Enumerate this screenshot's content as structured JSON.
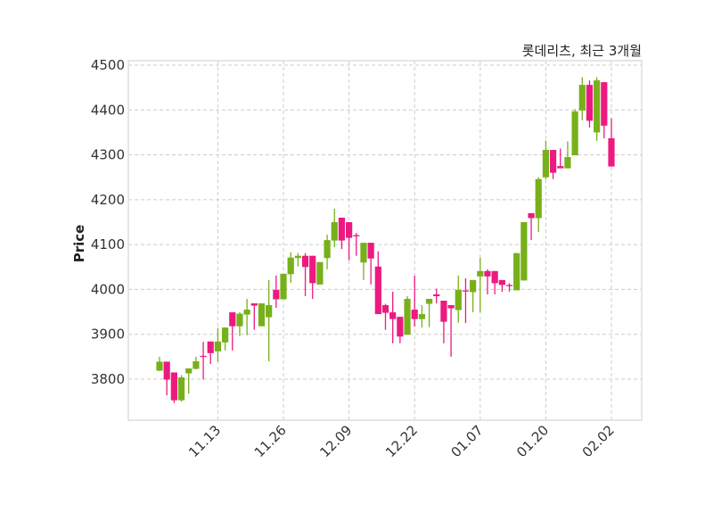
{
  "chart_data": {
    "type": "candlestick",
    "title": "롯데리츠, 최근 3개월",
    "xlabel": "",
    "ylabel": "Price",
    "ylim": [
      3705,
      4510
    ],
    "yticks": [
      3800,
      3900,
      4000,
      4100,
      4200,
      4300,
      4400,
      4500
    ],
    "xticks": [
      {
        "index": 8,
        "label": "11.13"
      },
      {
        "index": 17,
        "label": "11.26"
      },
      {
        "index": 26,
        "label": "12.09"
      },
      {
        "index": 35,
        "label": "12.22"
      },
      {
        "index": 44,
        "label": "01.07"
      },
      {
        "index": 53,
        "label": "01.20"
      },
      {
        "index": 62,
        "label": "02.02"
      }
    ],
    "grid": true,
    "colors": {
      "up": "#77b01a",
      "down": "#ec1a80",
      "grid": "#cccccc",
      "frame": "#dddddd"
    },
    "candles": [
      [
        3819,
        3850,
        3818,
        3839
      ],
      [
        3839,
        3839,
        3764,
        3799
      ],
      [
        3815,
        3815,
        3747,
        3753
      ],
      [
        3753,
        3809,
        3750,
        3804
      ],
      [
        3813,
        3824,
        3768,
        3824
      ],
      [
        3823,
        3850,
        3822,
        3840
      ],
      [
        3852,
        3883,
        3799,
        3850
      ],
      [
        3884,
        3884,
        3834,
        3858
      ],
      [
        3862,
        3914,
        3839,
        3884
      ],
      [
        3882,
        3915,
        3864,
        3915
      ],
      [
        3949,
        3949,
        3864,
        3918
      ],
      [
        3918,
        3949,
        3896,
        3946
      ],
      [
        3944,
        3979,
        3898,
        3955
      ],
      [
        3969,
        3969,
        3910,
        3964
      ],
      [
        3918,
        3969,
        3918,
        3969
      ],
      [
        3938,
        4021,
        3840,
        3965
      ],
      [
        3999,
        4031,
        3959,
        3978
      ],
      [
        3978,
        4035,
        3978,
        4035
      ],
      [
        4034,
        4083,
        4015,
        4071
      ],
      [
        4070,
        4081,
        4051,
        4075
      ],
      [
        4075,
        4081,
        3985,
        4050
      ],
      [
        4075,
        4075,
        3979,
        4014
      ],
      [
        4011,
        4061,
        4011,
        4061
      ],
      [
        4070,
        4122,
        4045,
        4110
      ],
      [
        4109,
        4180,
        4094,
        4150
      ],
      [
        4160,
        4160,
        4090,
        4109
      ],
      [
        4150,
        4150,
        4065,
        4115
      ],
      [
        4121,
        4126,
        4075,
        4120
      ],
      [
        4060,
        4104,
        4021,
        4104
      ],
      [
        4104,
        4104,
        4011,
        4069
      ],
      [
        4051,
        4085,
        3945,
        3945
      ],
      [
        3965,
        3968,
        3910,
        3948
      ],
      [
        3949,
        3995,
        3880,
        3934
      ],
      [
        3939,
        3939,
        3880,
        3895
      ],
      [
        3899,
        3985,
        3899,
        3979
      ],
      [
        3955,
        4031,
        3917,
        3934
      ],
      [
        3934,
        3965,
        3915,
        3945
      ],
      [
        3968,
        3979,
        3916,
        3979
      ],
      [
        3989,
        4002,
        3969,
        3985
      ],
      [
        3975,
        3975,
        3880,
        3928
      ],
      [
        3965,
        3965,
        3850,
        3958
      ],
      [
        3954,
        4031,
        3926,
        3999
      ],
      [
        3998,
        4025,
        3925,
        3997
      ],
      [
        3994,
        4021,
        3949,
        4021
      ],
      [
        4029,
        4071,
        3949,
        4041
      ],
      [
        4041,
        4045,
        3989,
        4029
      ],
      [
        4041,
        4041,
        3989,
        4014
      ],
      [
        4021,
        4021,
        3995,
        4010
      ],
      [
        4010,
        4014,
        3995,
        4009
      ],
      [
        3998,
        4081,
        3998,
        4081
      ],
      [
        4020,
        4150,
        4020,
        4150
      ],
      [
        4170,
        4170,
        4110,
        4159
      ],
      [
        4159,
        4250,
        4128,
        4246
      ],
      [
        4250,
        4332,
        4246,
        4311
      ],
      [
        4311,
        4311,
        4246,
        4260
      ],
      [
        4275,
        4314,
        4270,
        4270
      ],
      [
        4270,
        4330,
        4270,
        4295
      ],
      [
        4299,
        4402,
        4299,
        4397
      ],
      [
        4399,
        4473,
        4377,
        4456
      ],
      [
        4456,
        4466,
        4361,
        4376
      ],
      [
        4350,
        4473,
        4331,
        4466
      ],
      [
        4462,
        4462,
        4337,
        4365
      ],
      [
        4337,
        4381,
        4274,
        4274
      ]
    ]
  }
}
